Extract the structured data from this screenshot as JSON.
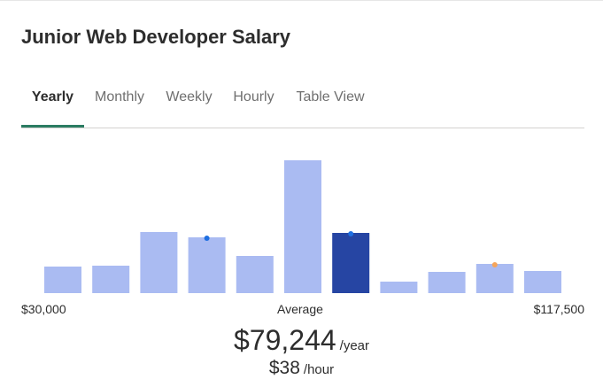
{
  "title": "Junior Web Developer Salary",
  "tabs": [
    {
      "label": "Yearly",
      "active": true
    },
    {
      "label": "Monthly",
      "active": false
    },
    {
      "label": "Weekly",
      "active": false
    },
    {
      "label": "Hourly",
      "active": false
    },
    {
      "label": "Table View",
      "active": false
    }
  ],
  "axis": {
    "min_label": "$30,000",
    "mid_label": "Average",
    "max_label": "$117,500"
  },
  "average": {
    "yearly_amount": "$79,244",
    "yearly_unit": "/year",
    "hourly_amount": "$38",
    "hourly_unit": "/hour"
  },
  "colors": {
    "bar": "#aabbf2",
    "bar_highlight": "#2645a3",
    "dot_blue": "#1f6fe0",
    "dot_orange": "#f5a55b",
    "accent": "#2b7c62"
  },
  "chart_data": {
    "type": "bar",
    "x_range": [
      "$30,000",
      "$117,500"
    ],
    "values": [
      30,
      31,
      69,
      63,
      42,
      150,
      68,
      13,
      24,
      33,
      25
    ],
    "highlight_index": 6,
    "markers": [
      {
        "bar": 3,
        "color": "blue"
      },
      {
        "bar": 6,
        "color": "blue"
      },
      {
        "bar": 9,
        "color": "orange"
      }
    ]
  }
}
